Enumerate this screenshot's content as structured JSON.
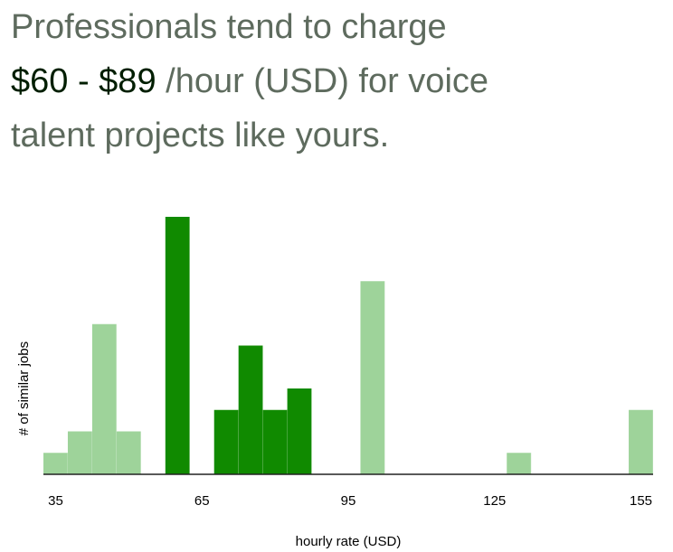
{
  "headline": {
    "line1": "Professionals tend to charge",
    "range": "$60 - $89",
    "line2_rest": " /hour (USD) for voice",
    "line3": "talent projects like yours."
  },
  "colors": {
    "highlight": "#108a00",
    "normal": "#9ed39a",
    "axis": "#222222",
    "headline_text": "#5e6b5e",
    "range_text": "#001e00"
  },
  "chart_data": {
    "type": "bar",
    "title": "",
    "xlabel": "hourly rate (USD)",
    "ylabel": "# of similar jobs",
    "bin_width": 5,
    "xlim": [
      32.5,
      157.5
    ],
    "ylim": [
      0,
      12
    ],
    "x_ticks": [
      35,
      65,
      95,
      125,
      155
    ],
    "highlight_range": [
      60,
      89
    ],
    "bars": [
      {
        "start": 32.5,
        "value": 1,
        "highlight": false
      },
      {
        "start": 37.5,
        "value": 2,
        "highlight": false
      },
      {
        "start": 42.5,
        "value": 7,
        "highlight": false
      },
      {
        "start": 47.5,
        "value": 2,
        "highlight": false
      },
      {
        "start": 57.5,
        "value": 12,
        "highlight": true
      },
      {
        "start": 67.5,
        "value": 3,
        "highlight": true
      },
      {
        "start": 72.5,
        "value": 6,
        "highlight": true
      },
      {
        "start": 77.5,
        "value": 3,
        "highlight": true
      },
      {
        "start": 82.5,
        "value": 4,
        "highlight": true
      },
      {
        "start": 97.5,
        "value": 9,
        "highlight": false
      },
      {
        "start": 127.5,
        "value": 1,
        "highlight": false
      },
      {
        "start": 152.5,
        "value": 3,
        "highlight": false
      }
    ]
  }
}
